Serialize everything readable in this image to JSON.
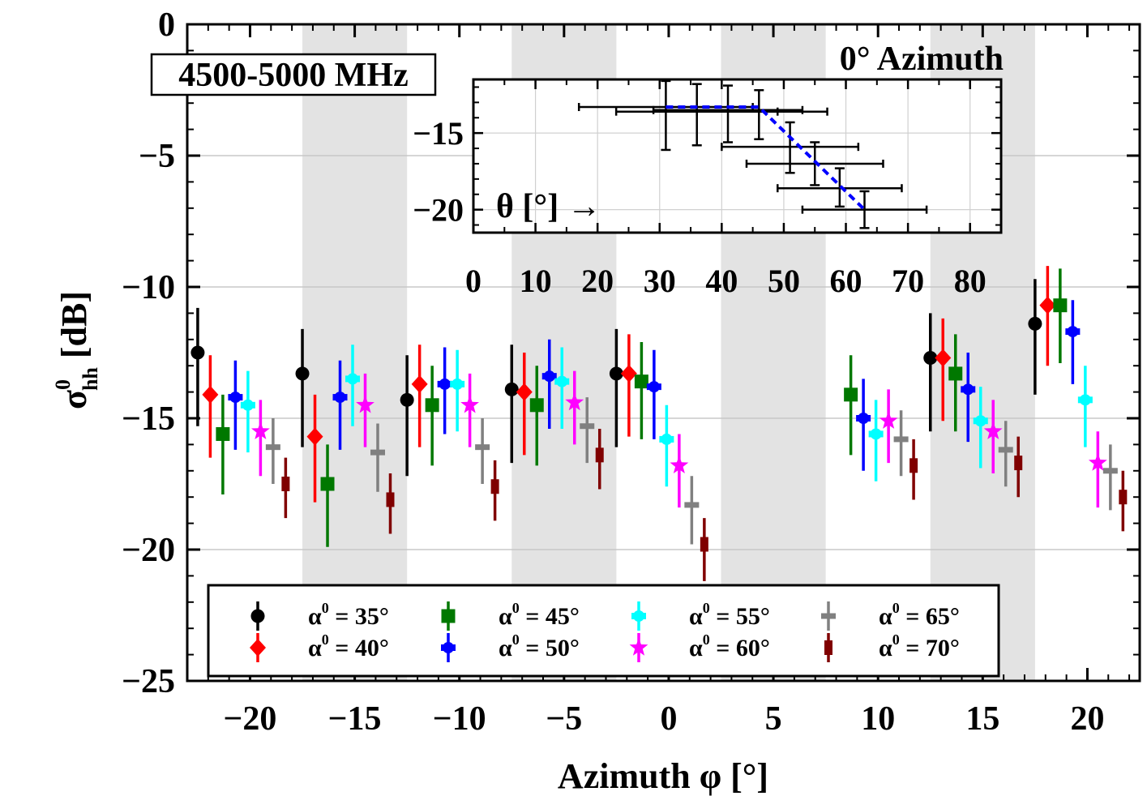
{
  "chart_data": [
    {
      "type": "scatter",
      "xlabel": "Azimuth φ [°]",
      "ylabel_main": "σ",
      "ylabel_sup": "0",
      "ylabel_sub": "hh",
      "ylabel_unit": " [dB]",
      "xlim": [
        -23,
        22.5
      ],
      "ylim": [
        -25,
        0
      ],
      "xticks": [
        -20,
        -15,
        -10,
        -5,
        0,
        5,
        10,
        15,
        20
      ],
      "xtick_labels": [
        "−20",
        "−15",
        "−10",
        "−5",
        "0",
        "5",
        "10",
        "15",
        "20"
      ],
      "yticks": [
        0,
        -5,
        -10,
        -15,
        -20,
        -25
      ],
      "ytick_labels": [
        "0",
        "−5",
        "−10",
        "−15",
        "−20",
        "−25"
      ],
      "grid": true,
      "shaded_bands": [
        [
          -17.5,
          -12.5
        ],
        [
          -7.5,
          -2.5
        ],
        [
          2.5,
          7.5
        ],
        [
          12.5,
          17.5
        ]
      ],
      "annotation_box": "4500-5000 MHz",
      "legend_position": "bottom",
      "series": [
        {
          "name": "α⁰ = 35°",
          "label_text": "α",
          "label_sup": "0",
          "label_rest": " = 35°",
          "color": "#000000",
          "marker": "circle",
          "points": [
            {
              "x": -22.5,
              "y": -12.5,
              "lo": -15.3,
              "hi": -10.8
            },
            {
              "x": -17.5,
              "y": -13.3,
              "lo": -16.1,
              "hi": -11.6
            },
            {
              "x": -12.5,
              "y": -14.3,
              "lo": -17.2,
              "hi": -12.6
            },
            {
              "x": -7.5,
              "y": -13.9,
              "lo": -16.7,
              "hi": -12.2
            },
            {
              "x": -2.5,
              "y": -13.3,
              "lo": -16.1,
              "hi": -11.6
            },
            {
              "x": 12.5,
              "y": -12.7,
              "lo": -15.5,
              "hi": -11.0
            },
            {
              "x": 17.5,
              "y": -11.4,
              "lo": -14.1,
              "hi": -9.7
            }
          ]
        },
        {
          "name": "α⁰ = 40°",
          "label_text": "α",
          "label_sup": "0",
          "label_rest": " = 40°",
          "color": "#ff0000",
          "marker": "diamond",
          "points": [
            {
              "x": -21.9,
              "y": -14.1,
              "lo": -16.5,
              "hi": -12.6
            },
            {
              "x": -16.9,
              "y": -15.7,
              "lo": -18.2,
              "hi": -14.1
            },
            {
              "x": -11.9,
              "y": -13.7,
              "lo": -16.1,
              "hi": -12.2
            },
            {
              "x": -6.9,
              "y": -14.0,
              "lo": -16.4,
              "hi": -12.5
            },
            {
              "x": -1.9,
              "y": -13.3,
              "lo": -15.7,
              "hi": -11.8
            },
            {
              "x": 13.1,
              "y": -12.7,
              "lo": -15.1,
              "hi": -11.2
            },
            {
              "x": 18.1,
              "y": -10.7,
              "lo": -13.0,
              "hi": -9.2
            }
          ]
        },
        {
          "name": "α⁰ = 45°",
          "label_text": "α",
          "label_sup": "0",
          "label_rest": " = 45°",
          "color": "#007800",
          "marker": "square",
          "points": [
            {
              "x": -21.3,
              "y": -15.6,
              "lo": -17.9,
              "hi": -14.1
            },
            {
              "x": -16.3,
              "y": -17.5,
              "lo": -19.9,
              "hi": -16.0
            },
            {
              "x": -11.3,
              "y": -14.5,
              "lo": -16.8,
              "hi": -13.0
            },
            {
              "x": -6.3,
              "y": -14.5,
              "lo": -16.8,
              "hi": -13.0
            },
            {
              "x": -1.3,
              "y": -13.6,
              "lo": -15.8,
              "hi": -12.1
            },
            {
              "x": 8.7,
              "y": -14.1,
              "lo": -16.4,
              "hi": -12.6
            },
            {
              "x": 13.7,
              "y": -13.3,
              "lo": -15.5,
              "hi": -11.8
            },
            {
              "x": 18.7,
              "y": -10.7,
              "lo": -12.9,
              "hi": -9.3
            }
          ]
        },
        {
          "name": "α⁰ = 50°",
          "label_text": "α",
          "label_sup": "0",
          "label_rest": " = 50°",
          "color": "#0000ff",
          "marker": "crossdot",
          "points": [
            {
              "x": -20.7,
              "y": -14.2,
              "lo": -16.2,
              "hi": -12.8
            },
            {
              "x": -15.7,
              "y": -14.2,
              "lo": -16.2,
              "hi": -12.8
            },
            {
              "x": -10.7,
              "y": -13.7,
              "lo": -15.6,
              "hi": -12.3
            },
            {
              "x": -5.7,
              "y": -13.4,
              "lo": -15.4,
              "hi": -12.0
            },
            {
              "x": -0.7,
              "y": -13.8,
              "lo": -15.8,
              "hi": -12.4
            },
            {
              "x": 9.3,
              "y": -15.0,
              "lo": -17.0,
              "hi": -13.5
            },
            {
              "x": 14.3,
              "y": -13.9,
              "lo": -15.9,
              "hi": -12.5
            },
            {
              "x": 19.3,
              "y": -11.7,
              "lo": -13.7,
              "hi": -10.5
            }
          ]
        },
        {
          "name": "α⁰ = 55°",
          "label_text": "α",
          "label_sup": "0",
          "label_rest": " = 55°",
          "color": "#00ffff",
          "marker": "crossdot",
          "points": [
            {
              "x": -20.1,
              "y": -14.5,
              "lo": -16.3,
              "hi": -13.2
            },
            {
              "x": -15.1,
              "y": -13.5,
              "lo": -15.3,
              "hi": -12.2
            },
            {
              "x": -10.1,
              "y": -13.7,
              "lo": -15.5,
              "hi": -12.4
            },
            {
              "x": -5.1,
              "y": -13.6,
              "lo": -15.4,
              "hi": -12.3
            },
            {
              "x": -0.1,
              "y": -15.8,
              "lo": -17.6,
              "hi": -14.5
            },
            {
              "x": 9.9,
              "y": -15.6,
              "lo": -17.4,
              "hi": -14.3
            },
            {
              "x": 14.9,
              "y": -15.1,
              "lo": -16.9,
              "hi": -13.8
            },
            {
              "x": 19.9,
              "y": -14.3,
              "lo": -16.1,
              "hi": -13.0
            }
          ]
        },
        {
          "name": "α⁰ = 60°",
          "label_text": "α",
          "label_sup": "0",
          "label_rest": " = 60°",
          "color": "#ff00ff",
          "marker": "star",
          "points": [
            {
              "x": -19.5,
              "y": -15.5,
              "lo": -17.2,
              "hi": -14.3
            },
            {
              "x": -14.5,
              "y": -14.5,
              "lo": -16.1,
              "hi": -13.3
            },
            {
              "x": -9.5,
              "y": -14.5,
              "lo": -16.1,
              "hi": -13.3
            },
            {
              "x": -4.5,
              "y": -14.4,
              "lo": -16.0,
              "hi": -13.2
            },
            {
              "x": 0.5,
              "y": -16.8,
              "lo": -18.4,
              "hi": -15.6
            },
            {
              "x": 10.5,
              "y": -15.1,
              "lo": -16.7,
              "hi": -13.9
            },
            {
              "x": 15.5,
              "y": -15.5,
              "lo": -17.1,
              "hi": -14.3
            },
            {
              "x": 20.5,
              "y": -16.7,
              "lo": -18.4,
              "hi": -15.5
            }
          ]
        },
        {
          "name": "α⁰ = 65°",
          "label_text": "α",
          "label_sup": "0",
          "label_rest": " = 65°",
          "color": "#808080",
          "marker": "cross",
          "points": [
            {
              "x": -18.9,
              "y": -16.1,
              "lo": -17.5,
              "hi": -15.0
            },
            {
              "x": -13.9,
              "y": -16.3,
              "lo": -17.8,
              "hi": -15.2
            },
            {
              "x": -8.9,
              "y": -16.1,
              "lo": -17.5,
              "hi": -15.0
            },
            {
              "x": -3.9,
              "y": -15.3,
              "lo": -16.7,
              "hi": -14.2
            },
            {
              "x": 1.1,
              "y": -18.3,
              "lo": -19.8,
              "hi": -17.2
            },
            {
              "x": 11.1,
              "y": -15.8,
              "lo": -17.2,
              "hi": -14.7
            },
            {
              "x": 16.1,
              "y": -16.2,
              "lo": -17.6,
              "hi": -15.1
            },
            {
              "x": 21.1,
              "y": -17.0,
              "lo": -18.5,
              "hi": -16.0
            }
          ]
        },
        {
          "name": "α⁰ = 70°",
          "label_text": "α",
          "label_sup": "0",
          "label_rest": " = 70°",
          "color": "#800000",
          "marker": "rect",
          "points": [
            {
              "x": -18.3,
              "y": -17.5,
              "lo": -18.8,
              "hi": -16.5
            },
            {
              "x": -13.3,
              "y": -18.1,
              "lo": -19.4,
              "hi": -17.1
            },
            {
              "x": -8.3,
              "y": -17.6,
              "lo": -18.9,
              "hi": -16.6
            },
            {
              "x": -3.3,
              "y": -16.4,
              "lo": -17.7,
              "hi": -15.4
            },
            {
              "x": 1.7,
              "y": -19.8,
              "lo": -21.2,
              "hi": -18.8
            },
            {
              "x": 11.7,
              "y": -16.8,
              "lo": -18.1,
              "hi": -15.8
            },
            {
              "x": 16.7,
              "y": -16.7,
              "lo": -18.0,
              "hi": -15.7
            },
            {
              "x": 21.7,
              "y": -18.0,
              "lo": -19.3,
              "hi": -17.0
            }
          ]
        }
      ]
    },
    {
      "type": "scatter",
      "title": "0° Azimuth",
      "xlabel": "θ [°] →",
      "xlim": [
        0,
        85
      ],
      "ylim": [
        -21.5,
        -11.5
      ],
      "xticks": [
        0,
        10,
        20,
        30,
        40,
        50,
        60,
        70,
        80
      ],
      "xtick_labels": [
        "0",
        "10",
        "20",
        "30",
        "40",
        "50",
        "60",
        "70",
        "80"
      ],
      "yticks": [
        -15,
        -20
      ],
      "ytick_labels": [
        "−15",
        "−20"
      ],
      "grid": true,
      "points": [
        {
          "x": 31,
          "y": -13.3,
          "xlo": 17,
          "xhi": 45,
          "ylo": -16.1,
          "yhi": -11.6
        },
        {
          "x": 36,
          "y": -13.6,
          "xlo": 23,
          "xhi": 49,
          "ylo": -15.8,
          "yhi": -11.8
        },
        {
          "x": 41,
          "y": -13.5,
          "xlo": 29,
          "xhi": 53,
          "ylo": -15.6,
          "yhi": -11.9
        },
        {
          "x": 46,
          "y": -13.6,
          "xlo": 36,
          "xhi": 57,
          "ylo": -15.4,
          "yhi": -12.2
        },
        {
          "x": 51,
          "y": -15.9,
          "xlo": 40,
          "xhi": 62,
          "ylo": -17.6,
          "yhi": -14.3
        },
        {
          "x": 55,
          "y": -17.0,
          "xlo": 44,
          "xhi": 66,
          "ylo": -18.4,
          "yhi": -15.6
        },
        {
          "x": 59,
          "y": -18.6,
          "xlo": 49,
          "xhi": 69,
          "ylo": -19.8,
          "yhi": -17.3
        },
        {
          "x": 63,
          "y": -20.0,
          "xlo": 53,
          "xhi": 73,
          "ylo": -21.2,
          "yhi": -18.8
        }
      ],
      "fit_line": [
        {
          "x": 31,
          "y": -13.3
        },
        {
          "x": 46,
          "y": -13.3
        },
        {
          "x": 63,
          "y": -20.0
        }
      ],
      "fit_color": "#0000ff"
    }
  ]
}
